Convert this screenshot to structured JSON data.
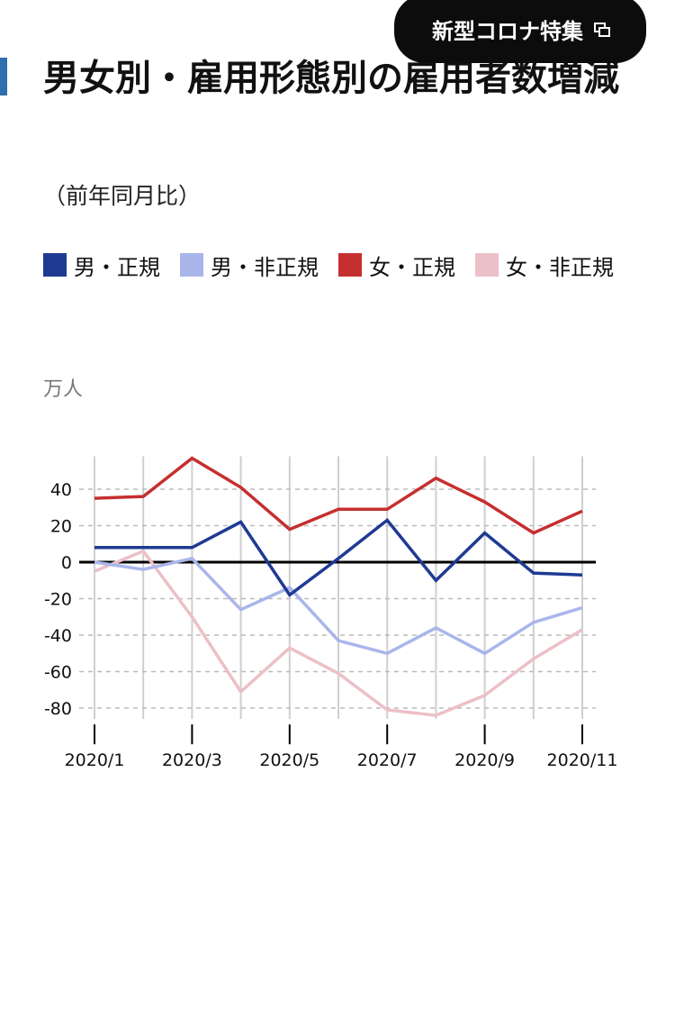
{
  "header": {
    "badge_label": "新型コロナ特集",
    "badge_icon": "external-window-icon"
  },
  "chart_data": {
    "type": "line",
    "title": "男女別・雇用形態別の雇用者数増減",
    "subtitle": "（前年同月比）",
    "ylabel": "万人",
    "xlabel": "",
    "x": [
      "2020/1",
      "2020/2",
      "2020/3",
      "2020/4",
      "2020/5",
      "2020/6",
      "2020/7",
      "2020/8",
      "2020/9",
      "2020/10",
      "2020/11"
    ],
    "x_tick_labels": [
      "2020/1",
      "2020/3",
      "2020/5",
      "2020/7",
      "2020/9",
      "2020/11"
    ],
    "y_ticks": [
      40,
      20,
      0,
      -20,
      -40,
      -60,
      -80
    ],
    "ylim": [
      -86,
      58
    ],
    "grid": true,
    "legend_position": "top",
    "series": [
      {
        "name": "男・正規",
        "color": "#1f3a93",
        "values": [
          8,
          8,
          8,
          22,
          -18,
          2,
          23,
          -10,
          16,
          -6,
          -7
        ]
      },
      {
        "name": "男・非正規",
        "color": "#aab6ea",
        "values": [
          0,
          -4,
          2,
          -26,
          -14,
          -43,
          -50,
          -36,
          -50,
          -33,
          -25
        ]
      },
      {
        "name": "女・正規",
        "color": "#c62f2f",
        "values": [
          35,
          36,
          57,
          41,
          18,
          29,
          29,
          46,
          33,
          16,
          28
        ]
      },
      {
        "name": "女・非正規",
        "color": "#ecc0c7",
        "values": [
          -5,
          6,
          -30,
          -71,
          -47,
          -61,
          -81,
          -84,
          -73,
          -53,
          -37
        ]
      }
    ]
  }
}
